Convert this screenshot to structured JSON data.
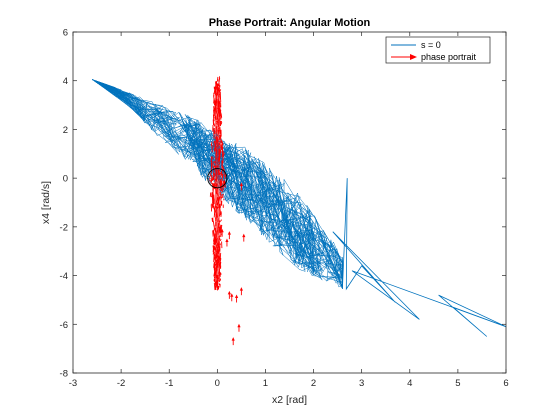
{
  "chart_data": {
    "type": "line",
    "title": "Phase Portrait: Angular Motion",
    "xlabel": "x2 [rad]",
    "ylabel": "x4 [rad/s]",
    "xlim": [
      -3,
      6
    ],
    "ylim": [
      -8,
      6
    ],
    "xticks": [
      -3,
      -2,
      -1,
      0,
      1,
      2,
      3,
      4,
      5,
      6
    ],
    "yticks": [
      -8,
      -6,
      -4,
      -2,
      0,
      2,
      4,
      6
    ],
    "grid": false,
    "legend_position": "top-right",
    "colors": {
      "s_zero": "#0072BD",
      "phase": "#FF0000",
      "circle": "#000000"
    },
    "series": [
      {
        "name": "s = 0",
        "style": "line",
        "band": {
          "upper_edge": [
            [
              -2.6,
              4.05
            ],
            [
              -1.5,
              3.3
            ],
            [
              -0.5,
              2.5
            ],
            [
              0.5,
              1.4
            ],
            [
              1.5,
              -0.2
            ],
            [
              2.2,
              -1.9
            ],
            [
              2.6,
              -3.2
            ]
          ],
          "lower_edge": [
            [
              -2.6,
              4.05
            ],
            [
              -1.8,
              2.9
            ],
            [
              -1.2,
              1.6
            ],
            [
              -0.5,
              0.4
            ],
            [
              0.3,
              -1.2
            ],
            [
              1.0,
              -2.5
            ],
            [
              1.7,
              -3.8
            ],
            [
              2.6,
              -4.55
            ]
          ]
        },
        "tail_path": [
          [
            2.6,
            -4.55
          ],
          [
            2.7,
            0.0
          ],
          [
            2.68,
            -4.55
          ],
          [
            3.0,
            -3.6
          ],
          [
            3.7,
            -5.1
          ],
          [
            2.4,
            -2.2
          ],
          [
            4.2,
            -5.8
          ],
          [
            2.8,
            -3.8
          ],
          [
            6.0,
            -6.1
          ],
          [
            4.9,
            -5.3
          ],
          [
            5.6,
            -6.5
          ],
          [
            4.6,
            -4.8
          ],
          [
            6.0,
            -6.1
          ]
        ]
      },
      {
        "name": "phase portrait",
        "style": "arrows",
        "column": {
          "x_center": 0.0,
          "y_range": [
            -4.5,
            4.0
          ],
          "half_width": [
            [
              4.0,
              0.06
            ],
            [
              2.0,
              0.1
            ],
            [
              0.0,
              0.16
            ],
            [
              -2.0,
              0.1
            ],
            [
              -4.5,
              0.06
            ]
          ]
        },
        "points": [
          [
            0.5,
            -4.6
          ],
          [
            0.4,
            -4.9
          ],
          [
            0.3,
            -4.85
          ],
          [
            0.45,
            -6.1
          ],
          [
            0.33,
            -6.65
          ],
          [
            0.25,
            -4.75
          ],
          [
            0.5,
            -0.3
          ],
          [
            0.2,
            -2.6
          ],
          [
            0.25,
            -2.3
          ],
          [
            0.55,
            -2.4
          ],
          [
            0.1,
            -2.2
          ]
        ]
      }
    ],
    "annotations": [
      {
        "type": "circle",
        "center": [
          0.0,
          0.0
        ],
        "radius": 0.2
      }
    ]
  }
}
